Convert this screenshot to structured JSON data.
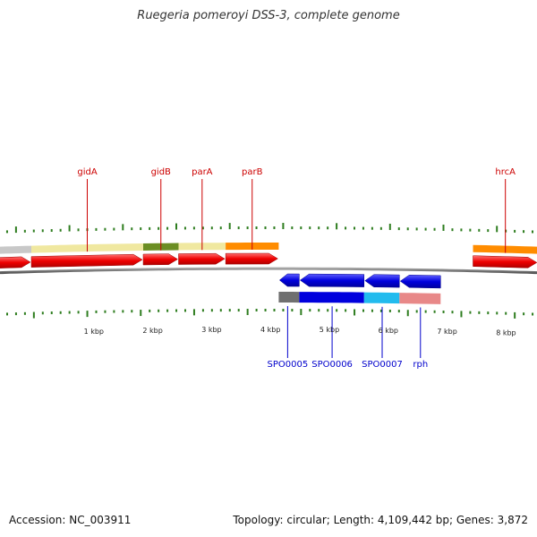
{
  "title": "Ruegeria pomeroyi DSS-3, complete genome",
  "footer": {
    "accession": "Accession: NC_003911",
    "summary": "Topology: circular; Length: 4,109,442 bp; Genes: 3,872"
  },
  "colors": {
    "forward_gene": "#ee0000",
    "reverse_gene": "#0000dd",
    "backbone": "#7a7a7a",
    "tick": "#2e7d1f",
    "forward_label": "#cc0000",
    "reverse_label": "#0000cc",
    "ruler_label": "#222222"
  },
  "chart_data": {
    "type": "genome-map",
    "units": "kbp",
    "ruler": [
      "1 kbp",
      "2 kbp",
      "3 kbp",
      "4 kbp",
      "5 kbp",
      "6 kbp",
      "7 kbp",
      "8 kbp"
    ],
    "forward_genes": [
      {
        "label": "",
        "start": -0.55,
        "end": 0.0
      },
      {
        "label": "gidA",
        "start": 0.0,
        "end": 1.9
      },
      {
        "label": "gidB",
        "start": 1.9,
        "end": 2.5
      },
      {
        "label": "parA",
        "start": 2.5,
        "end": 3.3
      },
      {
        "label": "parB",
        "start": 3.3,
        "end": 4.2
      },
      {
        "label": "hrcA",
        "start": 7.5,
        "end": 8.6
      },
      {
        "label": "",
        "start": 8.6,
        "end": 9.3
      }
    ],
    "forward_domains": [
      {
        "color": "#c8c8c8",
        "start": -0.55,
        "end": 0.0
      },
      {
        "color": "#f0e8a0",
        "start": 0.0,
        "end": 1.9
      },
      {
        "color": "#6b8e23",
        "start": 1.9,
        "end": 2.5
      },
      {
        "color": "#f0e8a0",
        "start": 2.5,
        "end": 3.3
      },
      {
        "color": "#ff8c00",
        "start": 3.3,
        "end": 4.2
      },
      {
        "color": "#ff8c00",
        "start": 7.5,
        "end": 8.6
      },
      {
        "color": "#c8b860",
        "start": 8.6,
        "end": 9.3
      }
    ],
    "reverse_genes": [
      {
        "label": "SPO0005",
        "start": 4.2,
        "end": 4.55
      },
      {
        "label": "SPO0006",
        "start": 4.55,
        "end": 5.65
      },
      {
        "label": "SPO0007",
        "start": 5.65,
        "end": 6.25
      },
      {
        "label": "rph",
        "start": 6.25,
        "end": 6.95
      }
    ],
    "reverse_domains": [
      {
        "color": "#707070",
        "start": 4.2,
        "end": 4.55
      },
      {
        "color": "#0000dd",
        "start": 4.55,
        "end": 5.65
      },
      {
        "color": "#22bbee",
        "start": 5.65,
        "end": 6.25
      },
      {
        "color": "#e88888",
        "start": 6.25,
        "end": 6.95
      }
    ]
  }
}
